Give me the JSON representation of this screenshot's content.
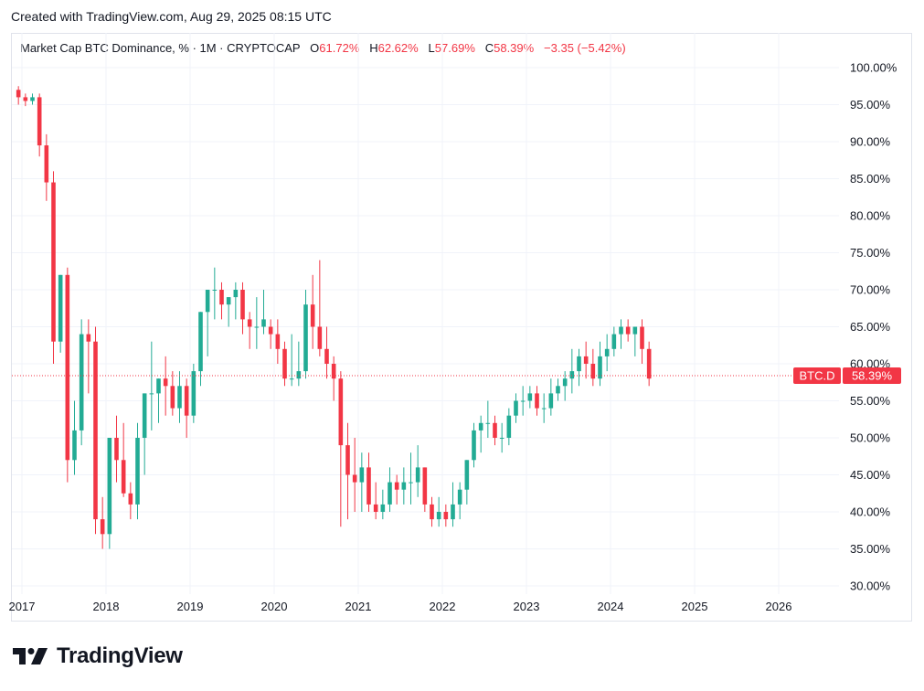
{
  "header": {
    "created": "Created with TradingView.com, Aug 29, 2025 08:15 UTC"
  },
  "legend": {
    "symbol": "Market Cap BTC Dominance, % · 1M · CRYPTOCAP",
    "o_label": "O",
    "o_value": "61.72%",
    "h_label": "H",
    "h_value": "62.62%",
    "l_label": "L",
    "l_value": "57.69%",
    "c_label": "C",
    "c_value": "58.39%",
    "change": "−3.35 (−5.42%)"
  },
  "price_tag": {
    "symbol": "BTC.D",
    "value": "58.39%"
  },
  "brand": {
    "name": "TradingView"
  },
  "colors": {
    "up": "#22ab94",
    "down": "#f23645",
    "grid": "#f0f3fa",
    "text": "#131722"
  },
  "chart_data": {
    "type": "candlestick",
    "interval": "1M",
    "ylim": [
      28,
      102
    ],
    "y_ticks": [
      "100.00%",
      "95.00%",
      "90.00%",
      "85.00%",
      "80.00%",
      "75.00%",
      "70.00%",
      "65.00%",
      "60.00%",
      "55.00%",
      "50.00%",
      "45.00%",
      "40.00%",
      "35.00%",
      "30.00%"
    ],
    "y_tick_values": [
      100,
      95,
      90,
      85,
      80,
      75,
      70,
      65,
      60,
      55,
      50,
      45,
      40,
      35,
      30
    ],
    "x_ticks": [
      "2017",
      "2018",
      "2019",
      "2020",
      "2021",
      "2022",
      "2023",
      "2024",
      "2025",
      "2026"
    ],
    "last_value": 58.39,
    "start": "2016-12",
    "candles": [
      [
        97,
        97.5,
        95,
        96
      ],
      [
        96,
        96.5,
        94.8,
        95.5
      ],
      [
        95.5,
        96.5,
        95,
        96
      ],
      [
        96,
        96.5,
        88,
        89.5
      ],
      [
        89.5,
        91,
        82,
        84.5
      ],
      [
        84.5,
        86,
        60,
        63
      ],
      [
        63,
        72,
        61.5,
        72
      ],
      [
        72,
        73,
        44,
        47
      ],
      [
        47,
        55,
        45,
        51
      ],
      [
        51,
        66,
        49,
        64
      ],
      [
        64,
        66,
        56,
        63
      ],
      [
        63,
        65,
        37,
        39
      ],
      [
        39,
        42,
        35,
        37
      ],
      [
        37,
        50,
        35,
        50
      ],
      [
        50,
        53,
        44,
        47
      ],
      [
        47,
        52,
        42,
        42.5
      ],
      [
        42.5,
        44,
        39,
        41
      ],
      [
        41,
        52,
        39,
        50
      ],
      [
        50,
        56,
        45,
        56
      ],
      [
        56,
        63,
        51,
        56
      ],
      [
        56,
        58,
        52,
        58
      ],
      [
        58,
        61,
        53,
        57
      ],
      [
        57,
        59,
        53,
        54
      ],
      [
        54,
        59,
        52,
        57
      ],
      [
        57,
        58,
        50,
        53
      ],
      [
        53,
        60,
        52,
        59
      ],
      [
        59,
        67,
        57,
        67
      ],
      [
        67,
        70,
        61,
        70
      ],
      [
        70,
        73,
        66,
        70
      ],
      [
        70,
        71,
        66,
        68
      ],
      [
        68,
        69,
        65,
        69
      ],
      [
        69,
        71,
        66,
        70
      ],
      [
        70,
        71,
        64,
        66
      ],
      [
        66,
        67,
        62,
        65
      ],
      [
        65,
        69,
        62,
        65
      ],
      [
        65,
        70,
        64,
        66
      ],
      [
        65,
        66,
        62,
        64
      ],
      [
        64,
        66,
        60,
        62
      ],
      [
        62,
        63,
        57,
        58
      ],
      [
        58,
        64,
        57,
        58
      ],
      [
        58,
        63,
        57,
        59
      ],
      [
        59,
        70,
        58,
        68
      ],
      [
        68,
        72,
        62,
        65
      ],
      [
        65,
        74,
        61,
        62
      ],
      [
        62,
        65,
        58,
        60
      ],
      [
        60,
        61,
        55,
        58
      ],
      [
        58,
        59,
        38,
        49
      ],
      [
        49,
        52,
        39,
        45
      ],
      [
        45,
        50,
        40,
        44
      ],
      [
        44,
        48,
        40,
        46
      ],
      [
        46,
        48,
        40,
        41
      ],
      [
        41,
        44,
        39,
        40
      ],
      [
        40,
        43,
        39,
        41
      ],
      [
        41,
        46,
        40,
        44
      ],
      [
        44,
        45,
        41,
        43
      ],
      [
        43,
        46,
        41,
        44
      ],
      [
        44,
        48,
        41,
        44
      ],
      [
        44,
        49,
        42,
        46
      ],
      [
        46,
        46,
        40,
        41
      ],
      [
        41,
        42,
        38,
        39
      ],
      [
        39,
        42,
        38,
        40
      ],
      [
        40,
        41,
        38,
        39
      ],
      [
        39,
        44,
        38,
        41
      ],
      [
        41,
        44,
        39,
        43
      ],
      [
        43,
        47,
        41,
        47
      ],
      [
        47,
        52,
        46,
        51
      ],
      [
        51,
        53,
        48,
        52
      ],
      [
        52,
        55,
        50,
        52
      ],
      [
        52,
        53,
        49,
        50
      ],
      [
        50,
        52,
        48,
        50
      ],
      [
        50,
        54,
        49,
        53
      ],
      [
        53,
        56,
        52,
        55
      ],
      [
        55,
        57,
        53,
        55
      ],
      [
        55,
        57,
        54,
        56
      ],
      [
        56,
        57,
        53,
        54
      ],
      [
        54,
        56,
        52,
        54
      ],
      [
        54,
        58,
        53,
        56
      ],
      [
        56,
        58,
        55,
        57
      ],
      [
        57,
        59,
        55,
        58
      ],
      [
        58,
        62,
        56,
        59
      ],
      [
        59,
        62,
        57,
        61
      ],
      [
        61,
        63,
        58,
        60
      ],
      [
        60,
        62,
        57,
        58
      ],
      [
        58,
        63,
        57,
        61
      ],
      [
        61,
        64,
        59,
        62
      ],
      [
        62,
        65,
        61,
        64
      ],
      [
        64,
        66,
        62,
        65
      ],
      [
        65,
        66,
        63,
        64
      ],
      [
        64,
        65,
        61,
        65
      ],
      [
        65,
        66,
        60,
        62
      ],
      [
        62,
        63,
        57,
        58
      ]
    ]
  }
}
